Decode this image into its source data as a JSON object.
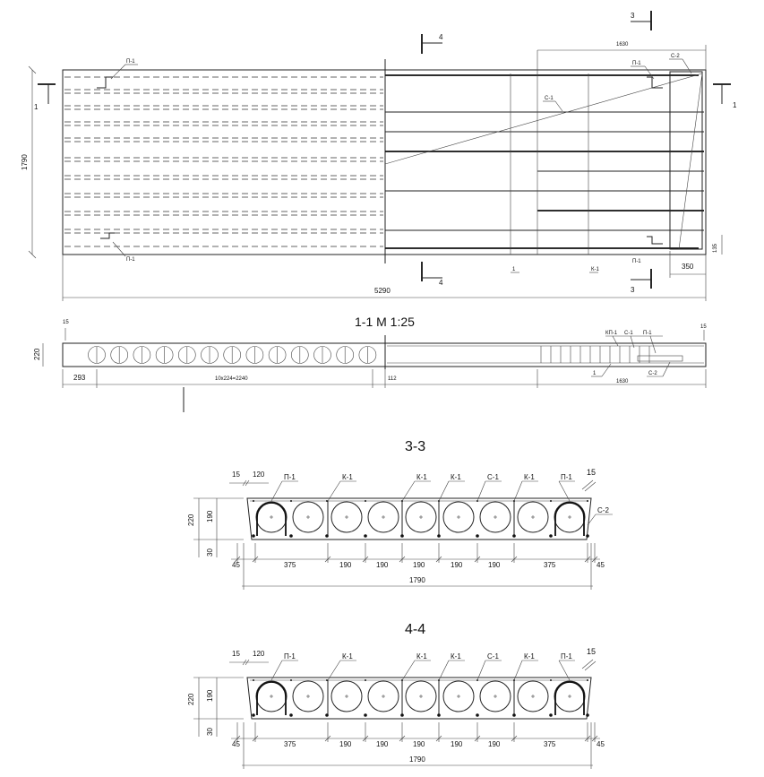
{
  "plan": {
    "section_mark_1": "1",
    "section_mark_3": "3",
    "section_mark_4": "4",
    "dim_overall_length": "5290",
    "dim_width": "1790",
    "dim_mesh_length": "1630",
    "dim_end_width": "350",
    "dim_end_offset": "135",
    "label_p1": "П-1",
    "label_c1": "С-1",
    "label_c2": "С-2",
    "label_k1": "К-1",
    "label_1": "1"
  },
  "section_1_1": {
    "title": "1-1 М 1:25",
    "dim_height": "220",
    "dim_cover_left": "15",
    "dim_cover_right": "15",
    "dim_left": "293",
    "dim_voids": "10х224=2240",
    "dim_mid": "112",
    "dim_mesh": "1630",
    "label_kp1": "КП-1",
    "label_c1": "С-1",
    "label_p1": "П-1",
    "label_c2": "С-2",
    "label_1": "1"
  },
  "sections": [
    {
      "title": "3-3",
      "top_labels": [
        "П-1",
        "К-1",
        "К-1",
        "К-1",
        "С-1",
        "К-1",
        "П-1"
      ],
      "label_right": "С-2",
      "dim_cover": "15",
      "dim_120": "120",
      "dim_cover_right": "15",
      "dim_height": "220",
      "dim_void": "190",
      "dim_bottom": "30",
      "bottom_dims": [
        "45",
        "375",
        "190",
        "190",
        "190",
        "190",
        "190",
        "375",
        "45"
      ],
      "dim_total": "1790"
    },
    {
      "title": "4-4",
      "top_labels": [
        "П-1",
        "К-1",
        "К-1",
        "К-1",
        "С-1",
        "К-1",
        "П-1"
      ],
      "dim_cover": "15",
      "dim_120": "120",
      "dim_cover_right": "15",
      "dim_height": "220",
      "dim_void": "190",
      "dim_bottom": "30",
      "bottom_dims": [
        "45",
        "375",
        "190",
        "190",
        "190",
        "190",
        "190",
        "375",
        "45"
      ],
      "dim_total": "1790"
    }
  ]
}
